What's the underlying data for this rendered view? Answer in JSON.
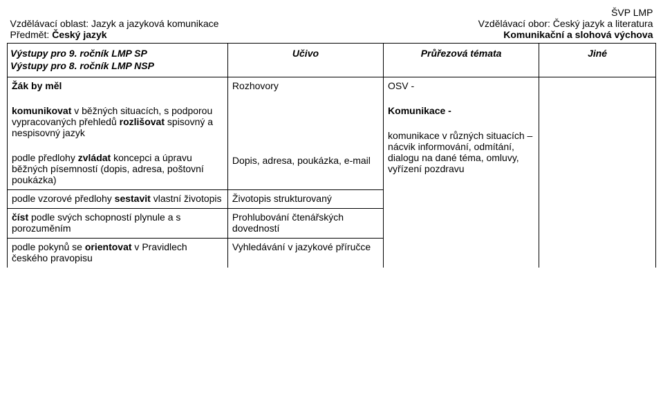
{
  "doc_label": "ŠVP LMP",
  "header_left_line1_label": "Vzdělávací oblast:",
  "header_left_line1_value": "Jazyk a jazyková komunikace",
  "header_right_line1_label": "Vzdělávací obor:",
  "header_right_line1_value": "Český jazyk a literatura",
  "header_left_line2_label": "Předmět:",
  "header_left_line2_value": "Český jazyk",
  "header_right_line2": "Komunikační a slohová výchova",
  "columns": {
    "c1_line1": "Výstupy pro 9. ročník LMP SP",
    "c1_line2": "Výstupy pro 8. ročník LMP NSP",
    "c2": "Učivo",
    "c3": "Průřezová témata",
    "c4": "Jiné"
  },
  "rows": [
    {
      "c1": [
        {
          "bold": true,
          "text": "Žák by měl"
        },
        {
          "spacer": true
        },
        {
          "mixed": [
            {
              "bold": true,
              "text": "komunikovat"
            },
            {
              "text": " v běžných situacích, s podporou vypracovaných přehledů "
            },
            {
              "bold": true,
              "text": "rozlišovat"
            },
            {
              "text": " spisovný a nespisovný jazyk"
            }
          ]
        },
        {
          "spacer": true
        },
        {
          "mixed": [
            {
              "text": "podle předlohy "
            },
            {
              "bold": true,
              "text": "zvládat"
            },
            {
              "text": " koncepci a úpravu běžných písemností (dopis, adresa, poštovní poukázka)"
            }
          ]
        }
      ],
      "c2": [
        {
          "text": "Rozhovory"
        },
        {
          "spacer": true
        },
        {
          "spacer": true
        },
        {
          "spacer": true
        },
        {
          "spacer": true
        },
        {
          "spacer": true
        },
        {
          "text": "Dopis, adresa, poukázka, e-mail"
        }
      ],
      "c3": [
        {
          "text": "OSV -"
        },
        {
          "spacer": true
        },
        {
          "bold": true,
          "text": "Komunikace -"
        },
        {
          "spacer": true
        },
        {
          "text": "komunikace v různých situacích – nácvik informování, odmítání, dialogu na dané téma, omluvy, vyřízení pozdravu"
        }
      ],
      "c4": []
    },
    {
      "c1": [
        {
          "mixed": [
            {
              "text": "podle vzorové předlohy "
            },
            {
              "bold": true,
              "text": "sestavit"
            },
            {
              "text": " vlastní životopis"
            }
          ]
        }
      ],
      "c2": [
        {
          "text": "Životopis strukturovaný"
        }
      ],
      "c3": null,
      "c4": null
    },
    {
      "c1": [
        {
          "mixed": [
            {
              "bold": true,
              "text": "číst"
            },
            {
              "text": " podle svých schopností plynule a s porozuměním"
            }
          ]
        }
      ],
      "c2": [
        {
          "text": "Prohlubování čtenářských dovedností"
        }
      ],
      "c3": null,
      "c4": null
    },
    {
      "c1": [
        {
          "mixed": [
            {
              "text": "podle pokynů se "
            },
            {
              "bold": true,
              "text": "orientovat"
            },
            {
              "text": " v Pravidlech českého pravopisu"
            }
          ]
        }
      ],
      "c2": [
        {
          "text": "Vyhledávání v jazykové příručce"
        }
      ],
      "c3": null,
      "c4": null
    }
  ]
}
